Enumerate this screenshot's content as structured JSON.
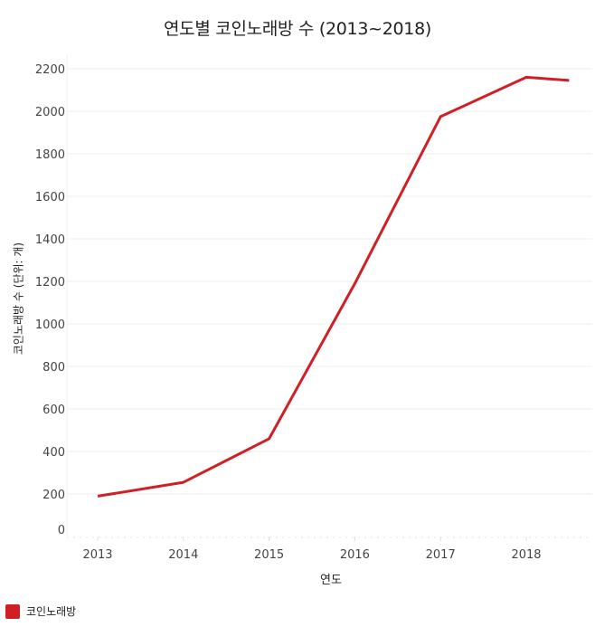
{
  "chart_data": {
    "type": "line",
    "title": "연도별 코인노래방 수 (2013~2018)",
    "xlabel": "연도",
    "ylabel": "코인노래방 수 (단위: 개)",
    "x_tick_labels": [
      "2013",
      "2014",
      "2015",
      "2016",
      "2017",
      "2018"
    ],
    "y_tick_labels": [
      "0",
      "200",
      "400",
      "600",
      "800",
      "1000",
      "1200",
      "1400",
      "1600",
      "1800",
      "2000",
      "2200"
    ],
    "ylim": [
      0,
      2200
    ],
    "grid": true,
    "legend_position": "bottom-left",
    "series": [
      {
        "name": "코인노래방",
        "color": "#d11f26",
        "x": [
          2013,
          2014,
          2015,
          2016,
          2017,
          2018,
          2018.5
        ],
        "values": [
          190,
          255,
          460,
          1190,
          1975,
          2160,
          2145
        ]
      }
    ]
  },
  "legend": {
    "items": [
      {
        "label": "코인노래방",
        "color": "#d11f26"
      }
    ]
  }
}
